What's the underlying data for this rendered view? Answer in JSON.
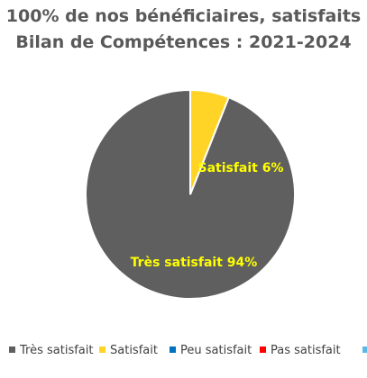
{
  "chart_data": {
    "type": "pie",
    "title_lines": [
      "100% de nos bénéficiaires, satisfaits",
      "Bilan de Compétences : 2021-2024"
    ],
    "start_angle_deg": 0,
    "direction": "counterclockwise",
    "slices": [
      {
        "name": "Très satisfait",
        "value": 94,
        "color": "#5f5f5f",
        "label": "Très satisfait 94%"
      },
      {
        "name": "Satisfait",
        "value": 6,
        "color": "#ffd426",
        "label": "Satisfait 6%"
      },
      {
        "name": "Peu satisfait",
        "value": 0,
        "color": "#0070c0",
        "label": ""
      },
      {
        "name": "Pas satisfait",
        "value": 0,
        "color": "#ff0000",
        "label": ""
      },
      {
        "name": "",
        "value": 0,
        "color": "#5bb8e8",
        "label": ""
      }
    ],
    "label_color": "#ffff00",
    "slice_border_color": "#ffffff",
    "legend": {
      "position": "bottom",
      "entries": [
        "Très satisfait",
        "Satisfait",
        "Peu satisfait",
        "Pas satisfait"
      ]
    }
  }
}
